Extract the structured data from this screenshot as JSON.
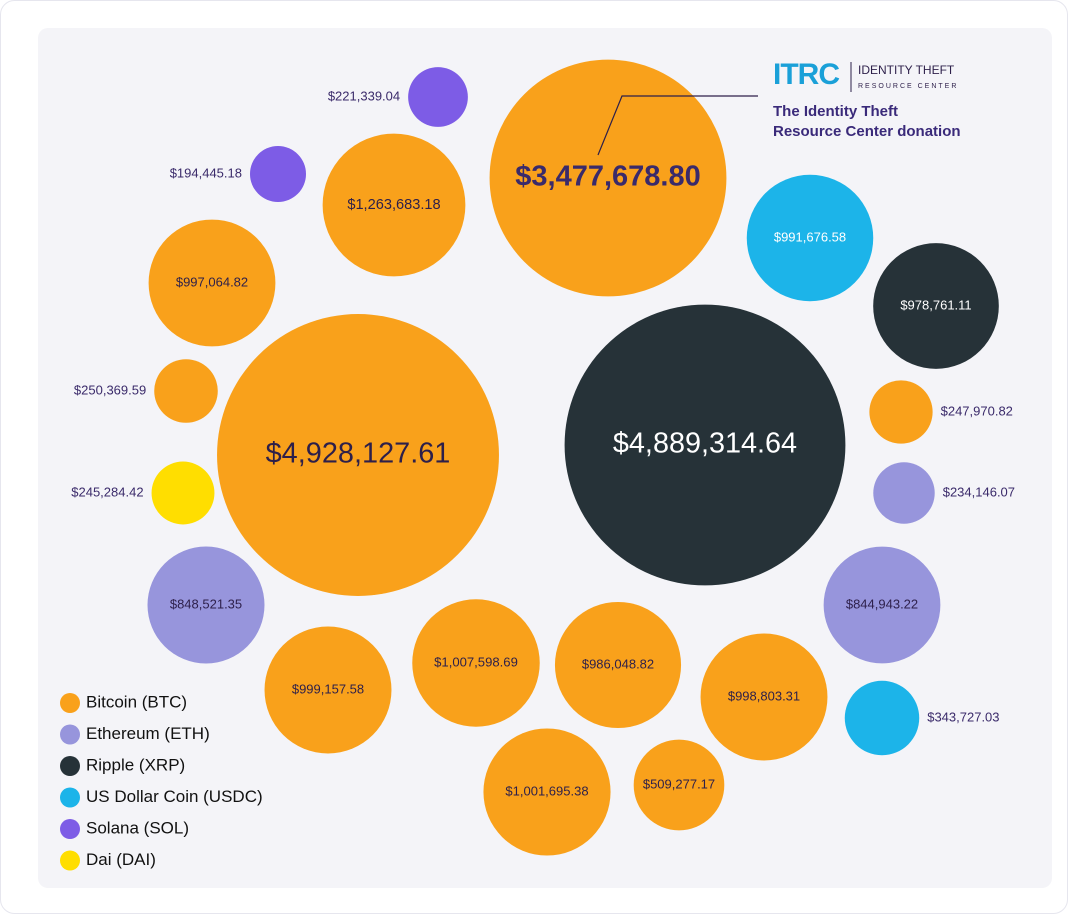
{
  "chart_data": {
    "type": "bubble",
    "annotation": {
      "logo": "ITRC",
      "logo_lines": [
        "IDENTITY THEFT",
        "RESOURCE CENTER"
      ],
      "lines": [
        "The Identity Theft",
        "Resource Center donation"
      ]
    },
    "series": [
      {
        "name": "Bitcoin (BTC)",
        "color": "#f9a11b",
        "values": [
          3477678.8,
          1263683.18,
          997064.82,
          250369.59,
          4928127.61,
          999157.58,
          1007598.69,
          986048.82,
          998803.31,
          1001695.38,
          509277.17,
          247970.82
        ],
        "value_labels": [
          "$3,477,678.80",
          "$1,263,683.18",
          "$997,064.82",
          "$250,369.59",
          "$4,928,127.61",
          "$999,157.58",
          "$1,007,598.69",
          "$986,048.82",
          "$998,803.31",
          "$1,001,695.38",
          "$509,277.17",
          "$247,970.82"
        ]
      },
      {
        "name": "Ethereum (ETH)",
        "color": "#9795dc",
        "values": [
          848521.35,
          844943.22,
          234146.07
        ],
        "value_labels": [
          "$848,521.35",
          "$844,943.22",
          "$234,146.07"
        ]
      },
      {
        "name": "Ripple (XRP)",
        "color": "#263238",
        "values": [
          4889314.64,
          978761.11
        ],
        "value_labels": [
          "$4,889,314.64",
          "$978,761.11"
        ]
      },
      {
        "name": "US Dollar Coin (USDC)",
        "color": "#1cb4e9",
        "values": [
          991676.58,
          343727.03
        ],
        "value_labels": [
          "$991,676.58",
          "$343,727.03"
        ]
      },
      {
        "name": "Solana (SOL)",
        "color": "#7d5ce6",
        "values": [
          221339.04,
          194445.18
        ],
        "value_labels": [
          "$221,339.04",
          "$194,445.18"
        ]
      },
      {
        "name": "Dai (DAI)",
        "color": "#ffde00",
        "values": [
          245284.42
        ],
        "value_labels": [
          "$245,284.42"
        ]
      }
    ]
  }
}
